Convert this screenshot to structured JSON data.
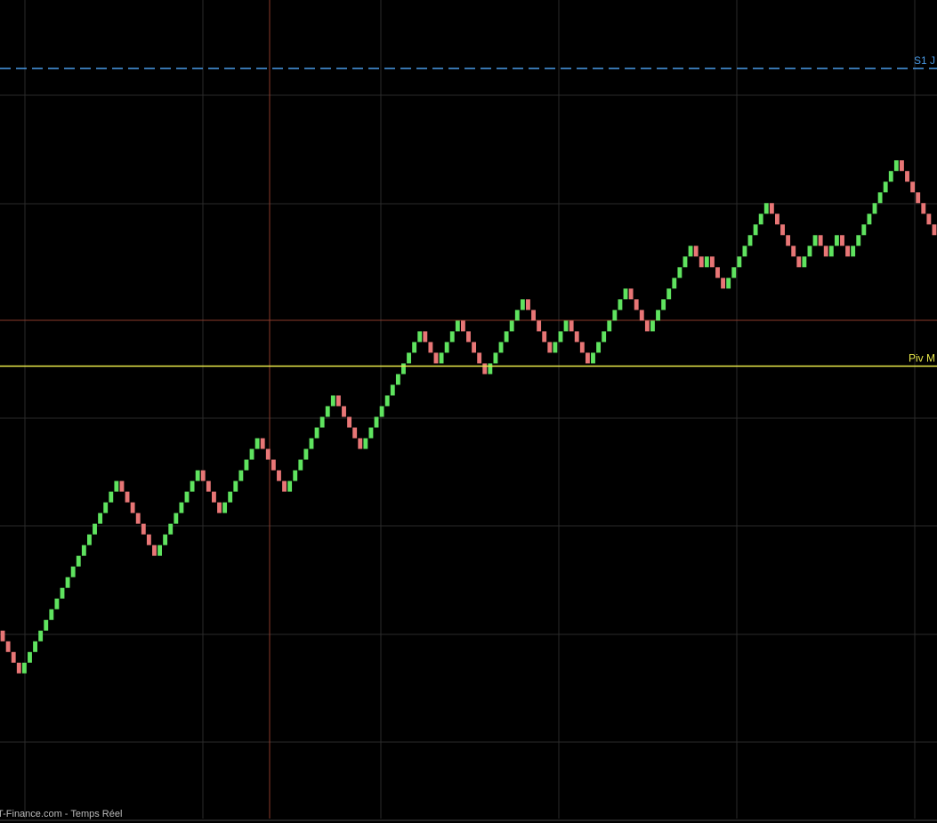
{
  "chart_data": {
    "type": "renko",
    "values": [
      5,
      4,
      3,
      2,
      3,
      4,
      5,
      6,
      7,
      8,
      9,
      10,
      11,
      12,
      13,
      14,
      15,
      16,
      17,
      18,
      19,
      20,
      19,
      18,
      17,
      16,
      15,
      14,
      13,
      14,
      15,
      16,
      17,
      18,
      19,
      20,
      21,
      20,
      19,
      18,
      17,
      18,
      19,
      20,
      21,
      22,
      23,
      24,
      23,
      22,
      21,
      20,
      19,
      20,
      21,
      22,
      23,
      24,
      25,
      26,
      27,
      28,
      27,
      26,
      25,
      24,
      23,
      24,
      25,
      26,
      27,
      28,
      29,
      30,
      31,
      32,
      33,
      34,
      33,
      32,
      31,
      32,
      33,
      34,
      35,
      34,
      33,
      32,
      31,
      30,
      31,
      32,
      33,
      34,
      35,
      36,
      37,
      36,
      35,
      34,
      33,
      32,
      33,
      34,
      35,
      34,
      33,
      32,
      31,
      32,
      33,
      34,
      35,
      36,
      37,
      38,
      37,
      36,
      35,
      34,
      35,
      36,
      37,
      38,
      39,
      40,
      41,
      42,
      41,
      40,
      41,
      40,
      39,
      38,
      39,
      40,
      41,
      42,
      43,
      44,
      45,
      46,
      45,
      44,
      43,
      42,
      41,
      40,
      41,
      42,
      43,
      42,
      41,
      42,
      43,
      42,
      41,
      42,
      43,
      44,
      45,
      46,
      47,
      48,
      49,
      50,
      49,
      48,
      47,
      46,
      45,
      44,
      43
    ],
    "up_color": "#5fe35f",
    "down_color": "#e87676",
    "ylim": [
      -12,
      65
    ],
    "lines": [
      {
        "label": "S1 J",
        "value": 58.6,
        "color": "#4a9be8",
        "dashed": true
      },
      {
        "label": "Piv M",
        "value": 30.75,
        "color": "#e8e84a",
        "dashed": false
      }
    ],
    "footer": "T-Finance.com - Temps Réel"
  }
}
